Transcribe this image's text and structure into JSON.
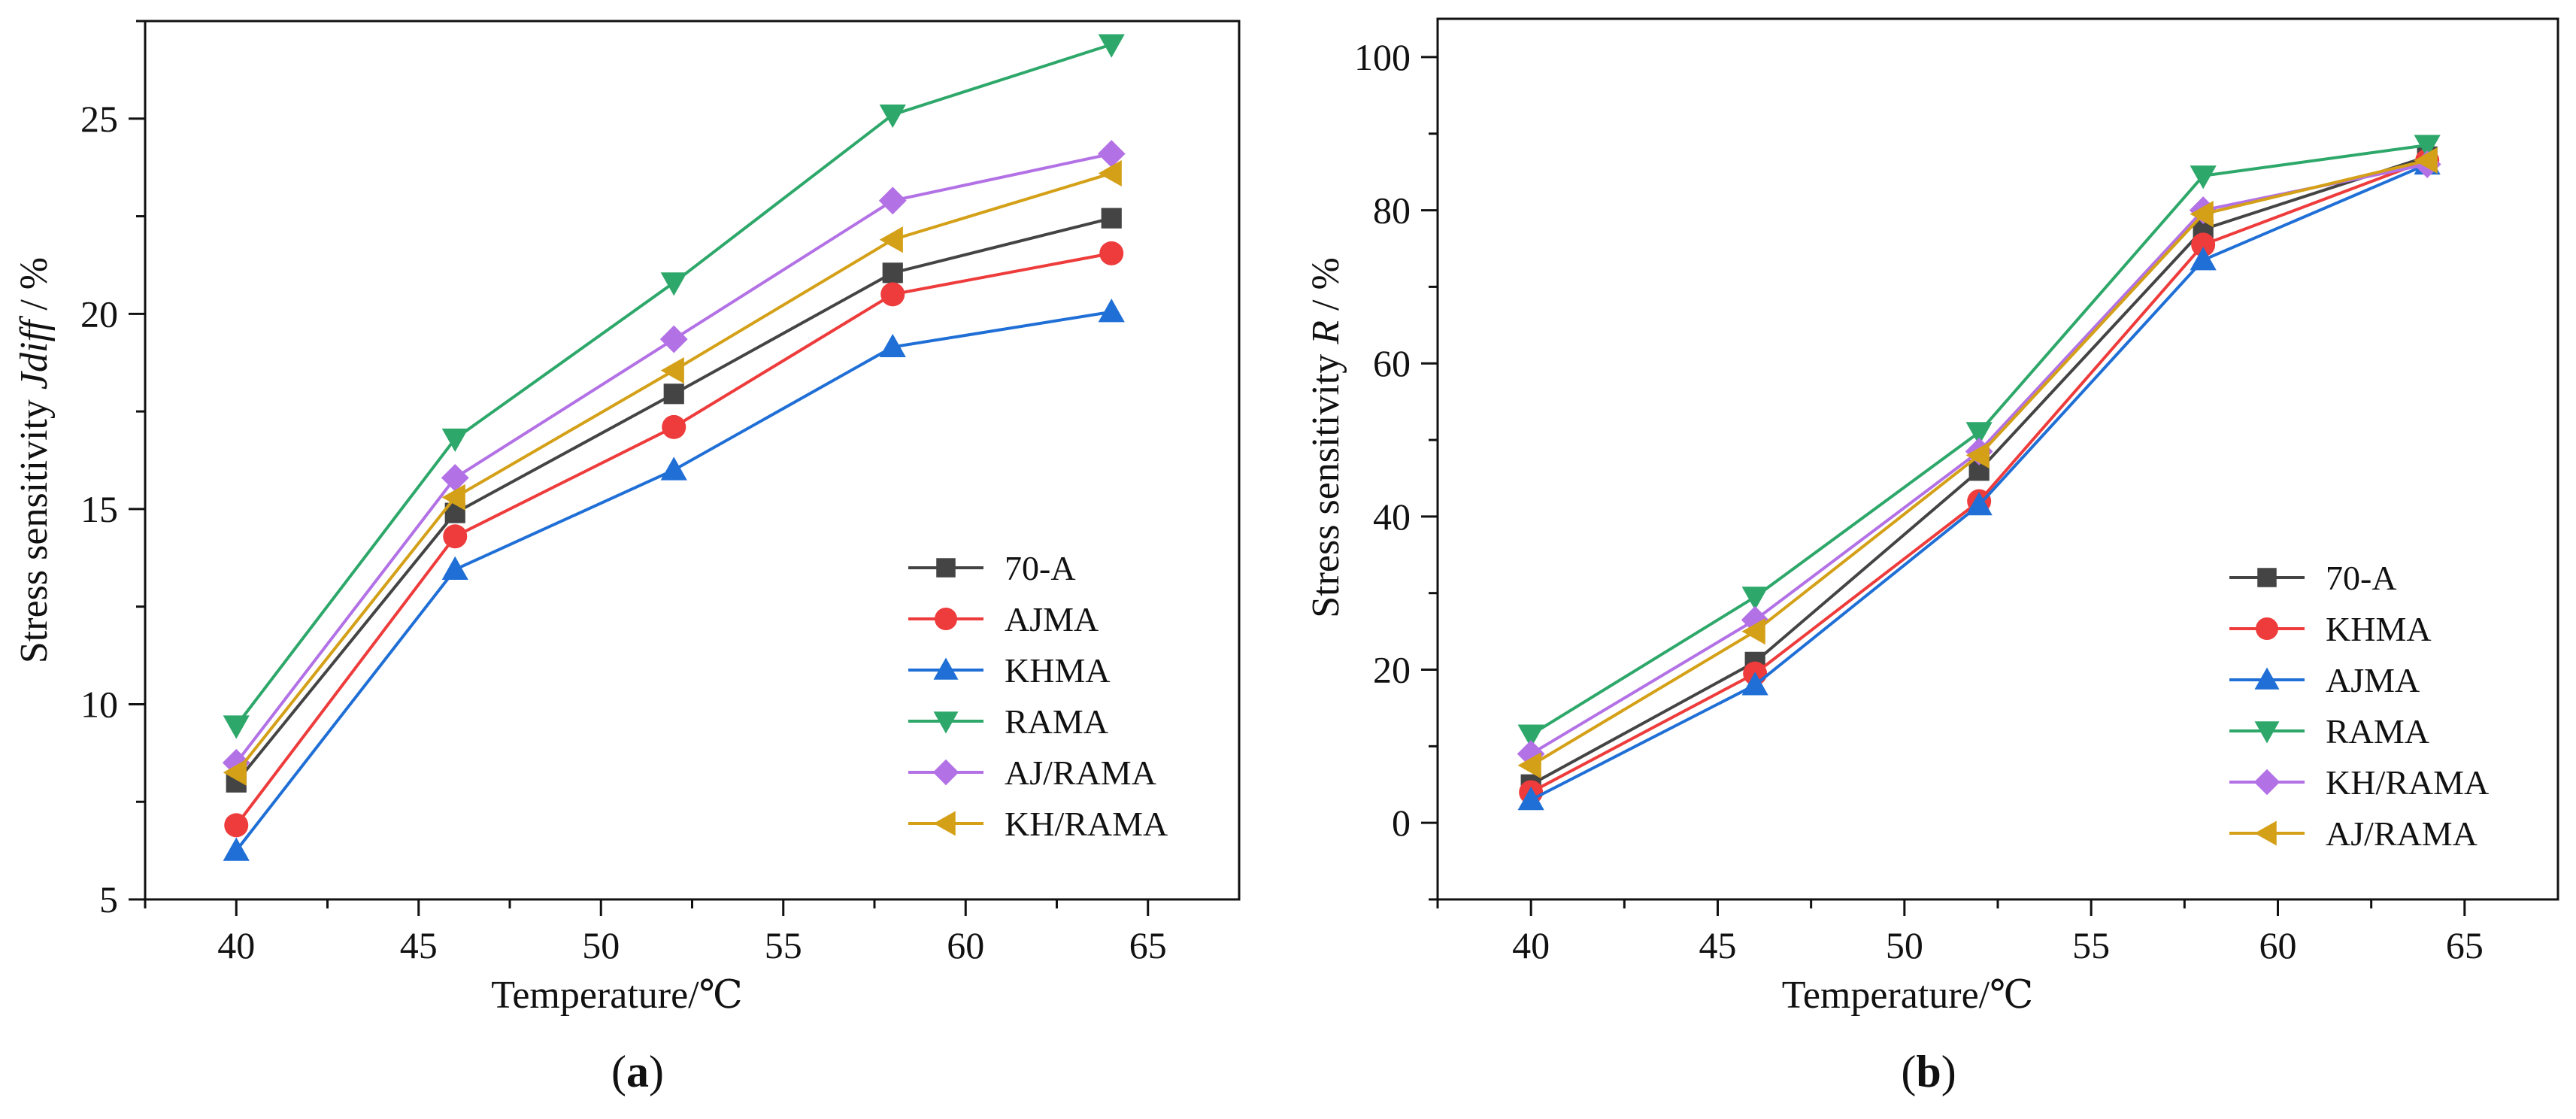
{
  "chart_data": [
    {
      "type": "line",
      "panel": "a",
      "caption": "a",
      "xlabel": "Temperature/℃",
      "ylabel_prefix": "Stress sensitivity ",
      "ylabel_italic": "Jdiff",
      "ylabel_suffix": " / %",
      "xlim": [
        37.5,
        67.5
      ],
      "ylim": [
        5,
        27.5
      ],
      "xticks": [
        40,
        45,
        50,
        55,
        60,
        65
      ],
      "yticks": [
        5,
        10,
        15,
        20,
        25
      ],
      "x": [
        40,
        46,
        52,
        58,
        64
      ],
      "legend_position": "lower-right",
      "series": [
        {
          "name": "70-A",
          "color": "#444444",
          "marker": "square",
          "values": [
            8.0,
            14.9,
            17.95,
            21.05,
            22.45
          ]
        },
        {
          "name": "AJMA",
          "color": "#ee3b3b",
          "marker": "circle",
          "values": [
            6.9,
            14.3,
            17.1,
            20.5,
            21.55
          ]
        },
        {
          "name": "KHMA",
          "color": "#1f6fd6",
          "marker": "triangle-up",
          "values": [
            6.25,
            13.45,
            16.0,
            19.15,
            20.05
          ]
        },
        {
          "name": "RAMA",
          "color": "#2ea86a",
          "marker": "triangle-down",
          "values": [
            9.45,
            16.8,
            20.8,
            25.1,
            26.9
          ]
        },
        {
          "name": "AJ/RAMA",
          "color": "#b371e6",
          "marker": "diamond",
          "values": [
            8.5,
            15.8,
            19.35,
            22.9,
            24.1
          ]
        },
        {
          "name": "KH/RAMA",
          "color": "#d4a017",
          "marker": "triangle-left",
          "values": [
            8.25,
            15.3,
            18.55,
            21.9,
            23.6
          ]
        }
      ]
    },
    {
      "type": "line",
      "panel": "b",
      "caption": "b",
      "xlabel": "Temperature/℃",
      "ylabel_prefix": "Stress sensitivity ",
      "ylabel_italic": "R",
      "ylabel_suffix": " / %",
      "xlim": [
        37.5,
        67.5
      ],
      "ylim": [
        -10,
        105
      ],
      "xticks": [
        40,
        45,
        50,
        55,
        60,
        65
      ],
      "yticks": [
        0,
        20,
        40,
        60,
        80,
        100
      ],
      "x": [
        40,
        46,
        52,
        58,
        64
      ],
      "legend_position": "lower-right",
      "series": [
        {
          "name": "70-A",
          "color": "#444444",
          "marker": "square",
          "values": [
            5.0,
            21.0,
            46.0,
            77.5,
            87.0
          ]
        },
        {
          "name": "KHMA",
          "color": "#ee3b3b",
          "marker": "circle",
          "values": [
            4.0,
            19.5,
            42.0,
            75.5,
            86.5
          ]
        },
        {
          "name": "AJMA",
          "color": "#1f6fd6",
          "marker": "triangle-up",
          "values": [
            3.0,
            18.0,
            41.5,
            73.5,
            86.0
          ]
        },
        {
          "name": "RAMA",
          "color": "#2ea86a",
          "marker": "triangle-down",
          "values": [
            11.5,
            29.5,
            51.0,
            84.5,
            88.5
          ]
        },
        {
          "name": "KH/RAMA",
          "color": "#b371e6",
          "marker": "diamond",
          "values": [
            9.0,
            26.5,
            48.5,
            80.0,
            86.0
          ]
        },
        {
          "name": "AJ/RAMA",
          "color": "#d4a017",
          "marker": "triangle-left",
          "values": [
            7.5,
            25.0,
            48.0,
            79.5,
            86.5
          ]
        }
      ]
    }
  ]
}
